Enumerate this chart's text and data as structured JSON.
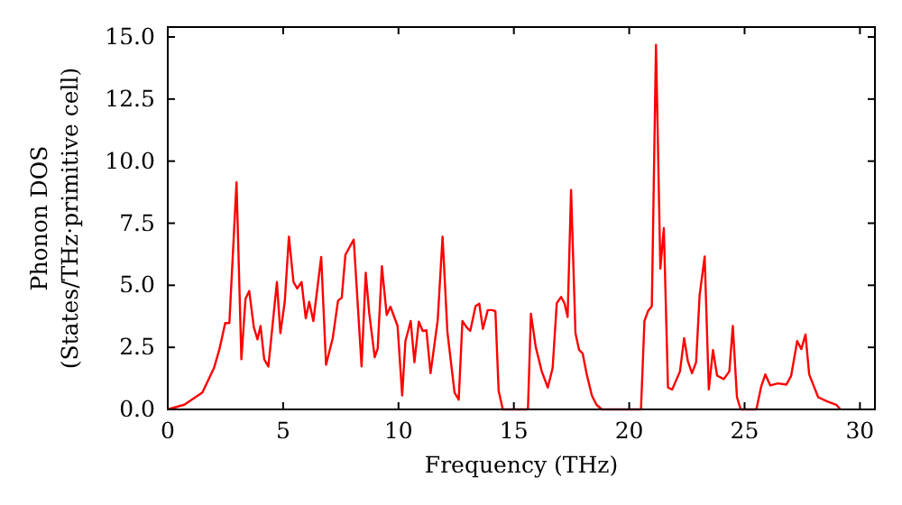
{
  "chart_data": {
    "type": "line",
    "xlabel": "Frequency (THz)",
    "ylabel": "Phonon DOS\n(States/THz·primitive cell)",
    "xlim": [
      0,
      30.65
    ],
    "ylim": [
      0,
      15.4
    ],
    "xticks": [
      0,
      5,
      10,
      15,
      20,
      25,
      30
    ],
    "yticks": [
      {
        "value": 0,
        "label": "0.0"
      },
      {
        "value": 2.5,
        "label": "2.5"
      },
      {
        "value": 5,
        "label": "5.0"
      },
      {
        "value": 7.5,
        "label": "7.5"
      },
      {
        "value": 10,
        "label": "10.0"
      },
      {
        "value": 12.5,
        "label": "12.5"
      },
      {
        "value": 15,
        "label": "15.0"
      }
    ],
    "grid": false,
    "marker": "none",
    "line_style": "solid",
    "series": [
      {
        "color": "#ff0000",
        "x": [
          0,
          0.72,
          1.5,
          2.0,
          2.23,
          2.49,
          2.67,
          2.98,
          3.19,
          3.37,
          3.53,
          3.73,
          3.89,
          4.02,
          4.18,
          4.36,
          4.73,
          4.88,
          5.07,
          5.25,
          5.45,
          5.61,
          5.8,
          5.98,
          6.13,
          6.31,
          6.65,
          6.86,
          7.15,
          7.38,
          7.54,
          7.7,
          8.06,
          8.4,
          8.58,
          8.73,
          8.97,
          9.1,
          9.28,
          9.49,
          9.65,
          9.96,
          10.16,
          10.3,
          10.53,
          10.69,
          10.88,
          11.05,
          11.21,
          11.39,
          11.7,
          11.91,
          12.12,
          12.43,
          12.61,
          12.77,
          12.95,
          13.11,
          13.34,
          13.5,
          13.66,
          13.87,
          14.05,
          14.2,
          14.34,
          14.52,
          15.61,
          15.74,
          15.95,
          16.21,
          16.47,
          16.68,
          16.86,
          17.05,
          17.2,
          17.33,
          17.48,
          17.67,
          17.83,
          17.98,
          18.16,
          18.38,
          18.58,
          18.81,
          20.51,
          20.66,
          20.82,
          20.98,
          21.16,
          21.35,
          21.5,
          21.68,
          21.86,
          22.2,
          22.38,
          22.54,
          22.72,
          22.9,
          23.05,
          23.27,
          23.45,
          23.63,
          23.81,
          24.1,
          24.34,
          24.49,
          24.67,
          24.83,
          25.51,
          25.72,
          25.9,
          26.11,
          26.45,
          26.81,
          27.02,
          27.28,
          27.46,
          27.64,
          27.8,
          28.19,
          28.58,
          28.97,
          29.16
        ],
        "values": [
          0,
          0.19,
          0.68,
          1.66,
          2.39,
          3.48,
          3.48,
          9.15,
          2.02,
          4.46,
          4.77,
          3.31,
          2.82,
          3.36,
          2.02,
          1.73,
          5.13,
          3.07,
          4.33,
          6.96,
          5.13,
          4.87,
          5.13,
          3.67,
          4.33,
          3.56,
          6.14,
          1.8,
          2.87,
          4.38,
          4.5,
          6.23,
          6.84,
          1.73,
          5.5,
          3.89,
          2.1,
          2.46,
          5.77,
          3.8,
          4.14,
          3.36,
          0.56,
          2.75,
          3.56,
          1.9,
          3.53,
          3.16,
          3.19,
          1.46,
          3.6,
          6.96,
          3.12,
          0.68,
          0.39,
          3.56,
          3.31,
          3.16,
          4.16,
          4.26,
          3.24,
          4.0,
          4.0,
          3.96,
          0.75,
          0,
          0,
          3.85,
          2.51,
          1.53,
          0.88,
          1.66,
          4.28,
          4.53,
          4.26,
          3.72,
          8.84,
          3.07,
          2.39,
          2.26,
          1.41,
          0.56,
          0.19,
          0,
          0,
          3.56,
          3.97,
          4.16,
          14.68,
          5.67,
          7.3,
          0.88,
          0.8,
          1.53,
          2.87,
          1.95,
          1.46,
          1.9,
          4.58,
          6.16,
          0.8,
          2.39,
          1.36,
          1.22,
          1.53,
          3.36,
          0.49,
          0,
          0,
          0.92,
          1.41,
          0.97,
          1.05,
          1.0,
          1.36,
          2.75,
          2.43,
          3.02,
          1.41,
          0.49,
          0.32,
          0.19,
          0
        ]
      }
    ]
  }
}
